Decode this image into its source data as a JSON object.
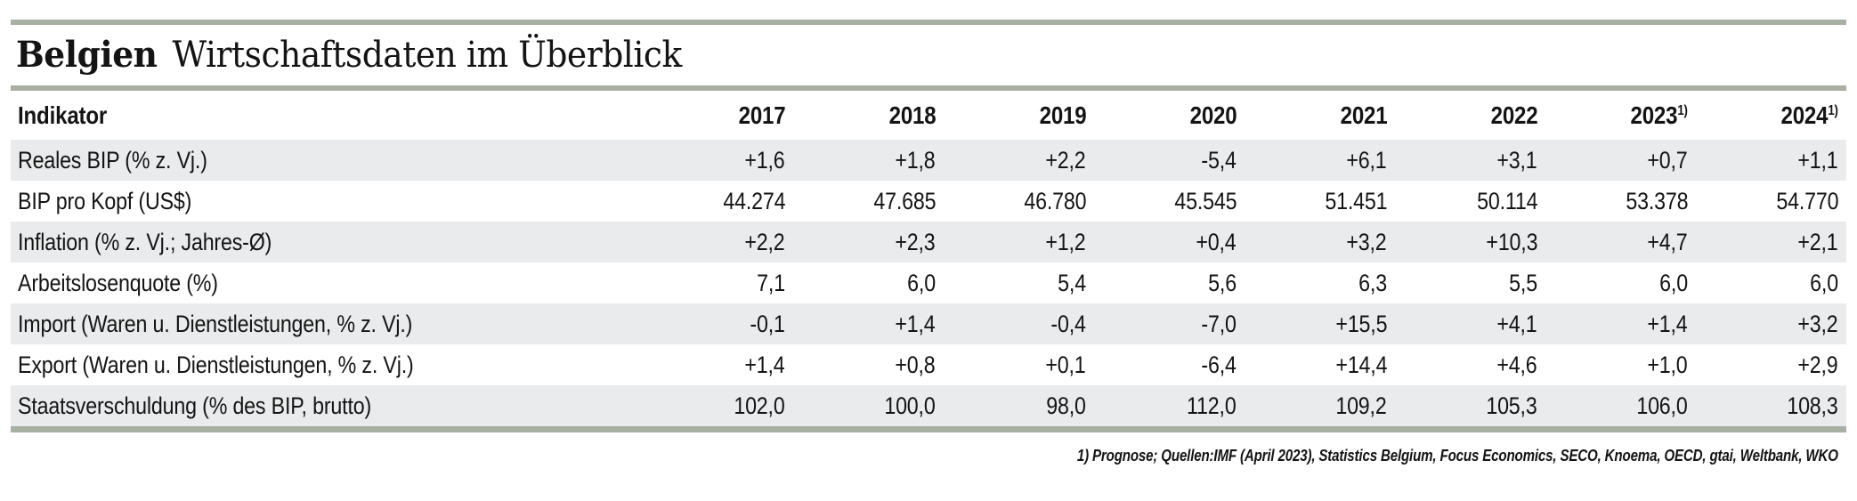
{
  "title": {
    "country": "Belgien",
    "subtitle": "Wirtschaftsdaten im Überblick"
  },
  "table": {
    "indicator_header": "Indikator",
    "year_headers": [
      {
        "label": "2017",
        "sup": ""
      },
      {
        "label": "2018",
        "sup": ""
      },
      {
        "label": "2019",
        "sup": ""
      },
      {
        "label": "2020",
        "sup": ""
      },
      {
        "label": "2021",
        "sup": ""
      },
      {
        "label": "2022",
        "sup": ""
      },
      {
        "label": "2023",
        "sup": "1)"
      },
      {
        "label": "2024",
        "sup": "1)"
      }
    ],
    "rows": [
      {
        "label": "Reales BIP (% z. Vj.)",
        "values": [
          "+1,6",
          "+1,8",
          "+2,2",
          "-5,4",
          "+6,1",
          "+3,1",
          "+0,7",
          "+1,1"
        ]
      },
      {
        "label": "BIP pro Kopf (US$)",
        "values": [
          "44.274",
          "47.685",
          "46.780",
          "45.545",
          "51.451",
          "50.114",
          "53.378",
          "54.770"
        ]
      },
      {
        "label": "Inflation (% z. Vj.; Jahres-Ø)",
        "values": [
          "+2,2",
          "+2,3",
          "+1,2",
          "+0,4",
          "+3,2",
          "+10,3",
          "+4,7",
          "+2,1"
        ]
      },
      {
        "label": "Arbeitslosenquote (%)",
        "values": [
          "7,1",
          "6,0",
          "5,4",
          "5,6",
          "6,3",
          "5,5",
          "6,0",
          "6,0"
        ]
      },
      {
        "label": "Import (Waren u. Dienstleistungen, % z. Vj.)",
        "values": [
          "-0,1",
          "+1,4",
          "-0,4",
          "-7,0",
          "+15,5",
          "+4,1",
          "+1,4",
          "+3,2"
        ]
      },
      {
        "label": "Export (Waren u. Dienstleistungen, % z. Vj.)",
        "values": [
          "+1,4",
          "+0,8",
          "+0,1",
          "-6,4",
          "+14,4",
          "+4,6",
          "+1,0",
          "+2,9"
        ]
      },
      {
        "label": "Staatsverschuldung (% des BIP, brutto)",
        "values": [
          "102,0",
          "100,0",
          "98,0",
          "112,0",
          "109,2",
          "105,3",
          "106,0",
          "108,3"
        ]
      }
    ]
  },
  "footnote": "1) Prognose; Quellen:IMF (April 2023), Statistics Belgium, Focus Economics, SECO, Knoema, OECD, gtai, Weltbank, WKO",
  "colors": {
    "rule": "#a7b0a3",
    "row_stripe": "#e9ebec",
    "text": "#141414"
  },
  "chart_data": {
    "type": "table",
    "title": "Belgien — Wirtschaftsdaten im Überblick",
    "categories": [
      2017,
      2018,
      2019,
      2020,
      2021,
      2022,
      2023,
      2024
    ],
    "series": [
      {
        "name": "Reales BIP (% z. Vj.)",
        "values": [
          1.6,
          1.8,
          2.2,
          -5.4,
          6.1,
          3.1,
          0.7,
          1.1
        ]
      },
      {
        "name": "BIP pro Kopf (US$)",
        "values": [
          44274,
          47685,
          46780,
          45545,
          51451,
          50114,
          53378,
          54770
        ]
      },
      {
        "name": "Inflation (% z. Vj.; Jahres-Ø)",
        "values": [
          2.2,
          2.3,
          1.2,
          0.4,
          3.2,
          10.3,
          4.7,
          2.1
        ]
      },
      {
        "name": "Arbeitslosenquote (%)",
        "values": [
          7.1,
          6.0,
          5.4,
          5.6,
          6.3,
          5.5,
          6.0,
          6.0
        ]
      },
      {
        "name": "Import (Waren u. Dienstleistungen, % z. Vj.)",
        "values": [
          -0.1,
          1.4,
          -0.4,
          -7.0,
          15.5,
          4.1,
          1.4,
          3.2
        ]
      },
      {
        "name": "Export (Waren u. Dienstleistungen, % z. Vj.)",
        "values": [
          1.4,
          0.8,
          0.1,
          -6.4,
          14.4,
          4.6,
          1.0,
          2.9
        ]
      },
      {
        "name": "Staatsverschuldung (% des BIP, brutto)",
        "values": [
          102.0,
          100.0,
          98.0,
          112.0,
          109.2,
          105.3,
          106.0,
          108.3
        ]
      }
    ],
    "notes": [
      "Werte 2023 und 2024 sind Prognosen (Fußnote 1)"
    ]
  }
}
